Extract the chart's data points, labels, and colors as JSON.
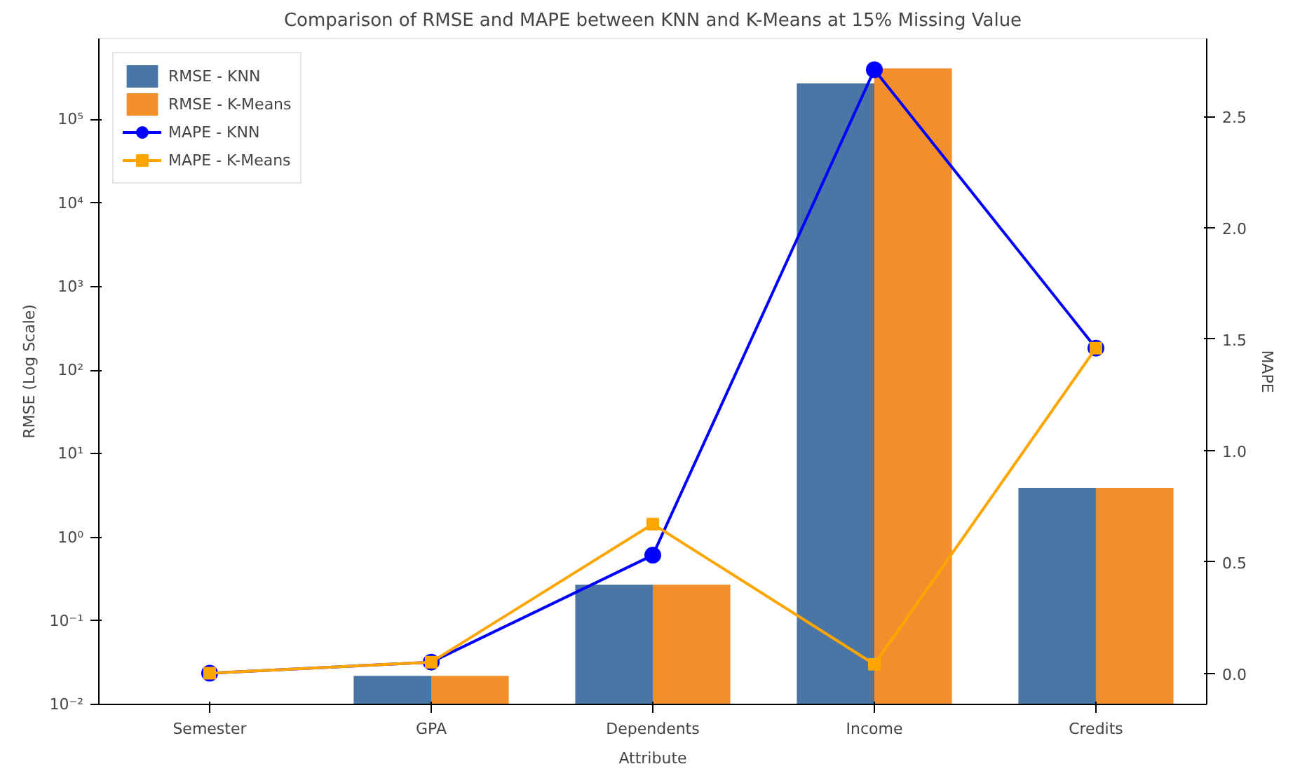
{
  "chart_data": {
    "type": "bar",
    "title": "Comparison of RMSE and MAPE between KNN and K-Means at 15% Missing Value",
    "xlabel": "Attribute",
    "ylabel": "RMSE (Log Scale)",
    "y2label": "MAPE",
    "categories": [
      "Semester",
      "GPA",
      "Dependents",
      "Income",
      "Credits"
    ],
    "log": "y",
    "ylim": [
      0.01,
      930000
    ],
    "yticks": [
      {
        "value": 0.01,
        "label": "10⁻²"
      },
      {
        "value": 0.1,
        "label": "10⁻¹"
      },
      {
        "value": 1,
        "label": "10⁰"
      },
      {
        "value": 10,
        "label": "10¹"
      },
      {
        "value": 100,
        "label": "10²"
      },
      {
        "value": 1000,
        "label": "10³"
      },
      {
        "value": 10000,
        "label": "10⁴"
      },
      {
        "value": 100000,
        "label": "10⁵"
      }
    ],
    "y2lim": [
      -0.14,
      2.85
    ],
    "y2ticks": [
      {
        "value": 0,
        "label": "0.0"
      },
      0.5,
      {
        "value": 1,
        "label": "1.0"
      },
      1.5,
      {
        "value": 2,
        "label": "2.0"
      },
      2.5
    ],
    "legend": "top left",
    "grid": false,
    "series": [
      {
        "name": "RMSE - KNN",
        "color": "#4a76a5",
        "values": [
          null,
          0.022,
          0.27,
          270000,
          3.9
        ]
      },
      {
        "name": "RMSE - K-Means",
        "color": "#f28e2b",
        "values": [
          null,
          0.022,
          0.27,
          410000,
          3.9
        ]
      },
      {
        "name": "MAPE - KNN",
        "type": "line",
        "axis": "y2",
        "marker": "circle",
        "color": "#0000ff",
        "values": [
          0.0,
          0.05,
          0.53,
          2.71,
          1.46
        ]
      },
      {
        "name": "MAPE - K-Means",
        "type": "line",
        "axis": "y2",
        "marker": "square",
        "color": "#ffa500",
        "values": [
          0.0,
          0.05,
          0.67,
          0.04,
          1.46
        ]
      }
    ]
  }
}
